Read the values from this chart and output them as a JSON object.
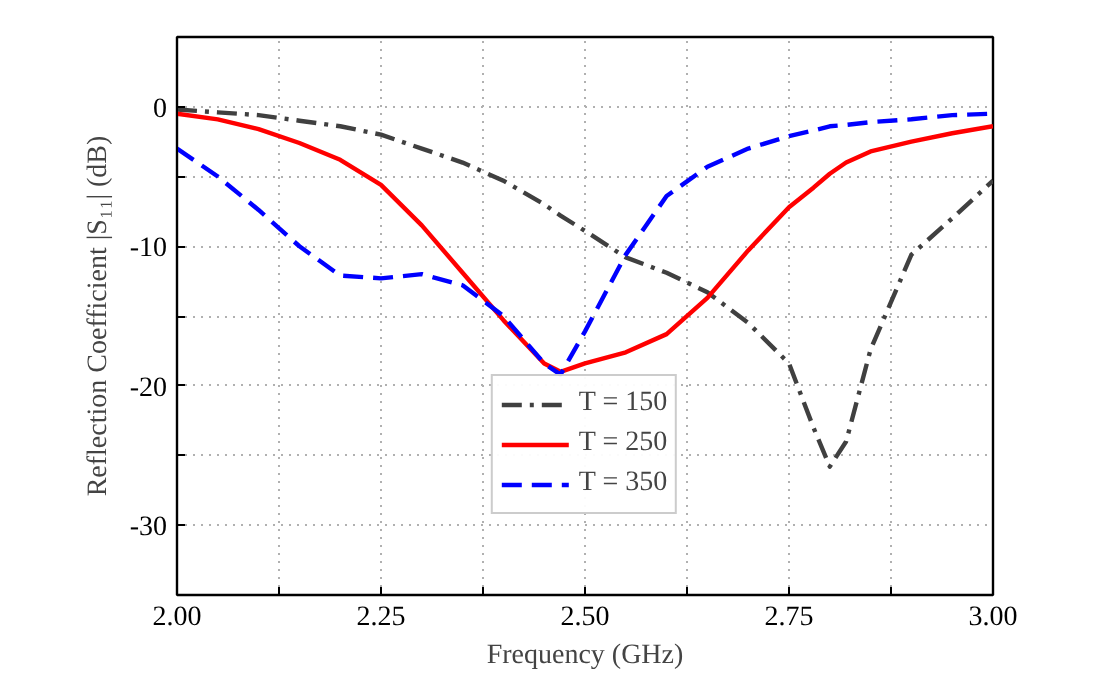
{
  "chart_data": {
    "type": "line",
    "xlabel": "Frequency (GHz)",
    "ylabel": "Reflection Coefficient |S₁₁| (dB)",
    "xlim": [
      2.0,
      3.0
    ],
    "ylim": [
      -35,
      5
    ],
    "xticks": [
      {
        "value": 2.0,
        "label": "2.00"
      },
      {
        "value": 2.125,
        "label": null
      },
      {
        "value": 2.25,
        "label": "2.25"
      },
      {
        "value": 2.375,
        "label": null
      },
      {
        "value": 2.5,
        "label": "2.50"
      },
      {
        "value": 2.625,
        "label": null
      },
      {
        "value": 2.75,
        "label": "2.75"
      },
      {
        "value": 2.875,
        "label": null
      },
      {
        "value": 3.0,
        "label": "3.00"
      }
    ],
    "yticks": [
      {
        "value": -30,
        "label": "-30"
      },
      {
        "value": -25,
        "label": null
      },
      {
        "value": -20,
        "label": "-20"
      },
      {
        "value": -15,
        "label": null
      },
      {
        "value": -10,
        "label": "-10"
      },
      {
        "value": -5,
        "label": null
      },
      {
        "value": 0,
        "label": "0"
      }
    ],
    "grid": true,
    "legend": "bottom",
    "x": [
      2.0,
      2.05,
      2.1,
      2.15,
      2.2,
      2.25,
      2.3,
      2.35,
      2.4,
      2.45,
      2.47,
      2.5,
      2.55,
      2.6,
      2.65,
      2.7,
      2.75,
      2.78,
      2.8,
      2.82,
      2.85,
      2.9,
      2.95,
      3.0
    ],
    "series": [
      {
        "name": "T = 150",
        "color": "#404040",
        "line_style": "dashdot",
        "values": [
          -0.2,
          -0.4,
          -0.6,
          -1.0,
          -1.4,
          -2.0,
          -3.0,
          -4.0,
          -5.3,
          -7.0,
          -7.8,
          -8.9,
          -10.8,
          -11.9,
          -13.3,
          -15.5,
          -18.4,
          -23.0,
          -25.8,
          -24.0,
          -17.4,
          -10.6,
          -8.0,
          -5.3
        ]
      },
      {
        "name": "T = 250",
        "color": "#ff0000",
        "line_style": "solid",
        "values": [
          -0.5,
          -0.9,
          -1.6,
          -2.6,
          -3.8,
          -5.6,
          -8.5,
          -11.9,
          -15.3,
          -18.4,
          -19.0,
          -18.4,
          -17.6,
          -16.3,
          -13.7,
          -10.3,
          -7.2,
          -5.8,
          -4.8,
          -4.0,
          -3.2,
          -2.5,
          -1.9,
          -1.4
        ]
      },
      {
        "name": "T = 350",
        "color": "#0000ff",
        "line_style": "dashed",
        "values": [
          -3.0,
          -5.0,
          -7.4,
          -10.0,
          -12.1,
          -12.3,
          -12.0,
          -12.8,
          -15.0,
          -18.4,
          -19.2,
          -16.1,
          -10.6,
          -6.4,
          -4.3,
          -3.0,
          -2.1,
          -1.7,
          -1.4,
          -1.3,
          -1.1,
          -0.9,
          -0.6,
          -0.5
        ]
      }
    ]
  }
}
